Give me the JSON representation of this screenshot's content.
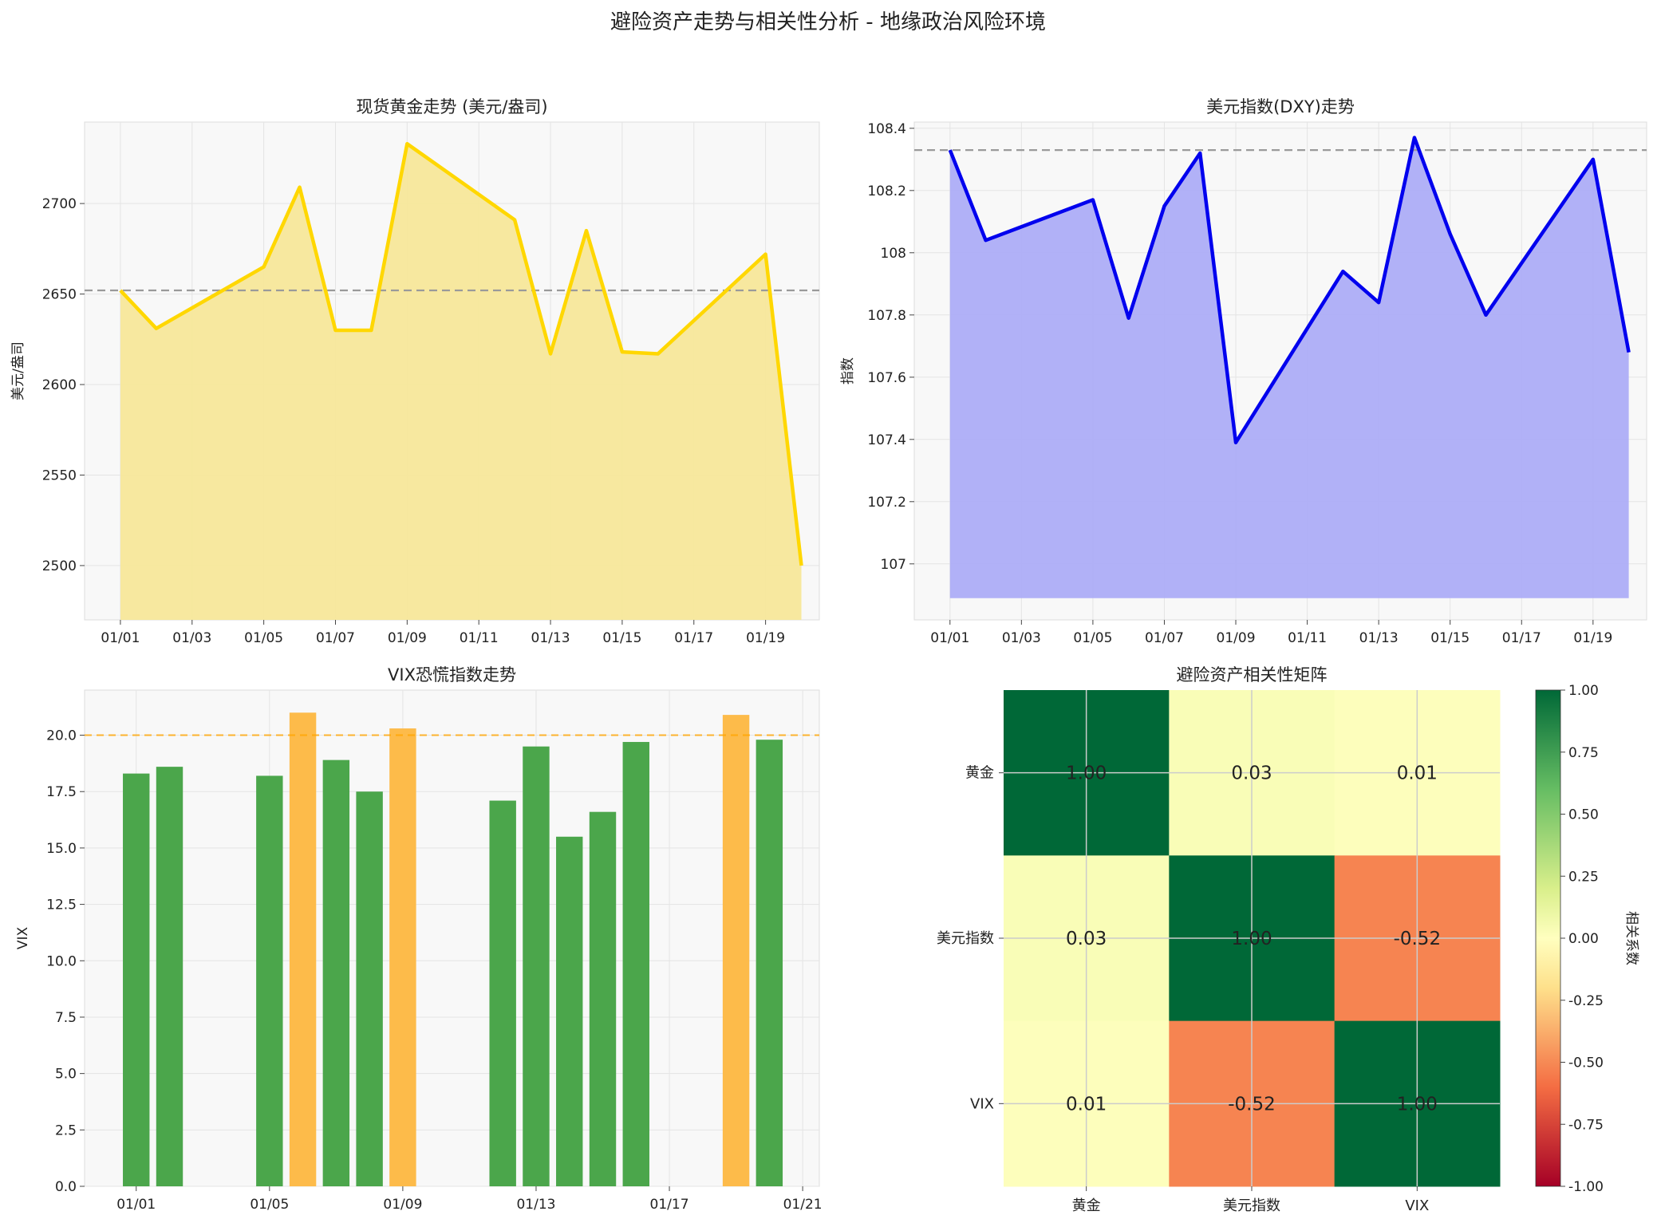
{
  "figure": {
    "title": "避险资产走势与相关性分析 - 地缘政治风险环境"
  },
  "chart_data": [
    {
      "type": "area",
      "title": "现货黄金走势 (美元/盎司)",
      "ylabel": "美元/盎司",
      "x": [
        "01/01",
        "01/02",
        "01/05",
        "01/06",
        "01/07",
        "01/08",
        "01/09",
        "01/12",
        "01/13",
        "01/14",
        "01/15",
        "01/16",
        "01/19",
        "01/20"
      ],
      "values": [
        2652,
        2631,
        2665,
        2709,
        2630,
        2630,
        2733,
        2691,
        2617,
        2685,
        2618,
        2617,
        2672,
        2500
      ],
      "mean_line": 2652,
      "fill_base": 2470,
      "ylim": [
        2470,
        2745
      ],
      "yticks": [
        2500,
        2550,
        2600,
        2650,
        2700
      ],
      "xticks": [
        "01/01",
        "01/03",
        "01/05",
        "01/07",
        "01/09",
        "01/11",
        "01/13",
        "01/15",
        "01/17",
        "01/19"
      ],
      "color": "#FFD700",
      "fill_color": "#F7E79A",
      "grid": true
    },
    {
      "type": "area",
      "title": "美元指数(DXY)走势",
      "ylabel": "指数",
      "x": [
        "01/01",
        "01/02",
        "01/05",
        "01/06",
        "01/07",
        "01/08",
        "01/09",
        "01/12",
        "01/13",
        "01/14",
        "01/15",
        "01/16",
        "01/19",
        "01/20"
      ],
      "values": [
        108.33,
        108.04,
        108.17,
        107.79,
        108.15,
        108.32,
        107.39,
        107.94,
        107.84,
        108.37,
        108.06,
        107.8,
        108.3,
        107.68
      ],
      "mean_line": 108.33,
      "fill_base": 106.89,
      "ylim": [
        106.82,
        108.42
      ],
      "yticks": [
        107.0,
        107.2,
        107.4,
        107.6,
        107.8,
        108.0,
        108.2,
        108.4
      ],
      "xticks": [
        "01/01",
        "01/03",
        "01/05",
        "01/07",
        "01/09",
        "01/11",
        "01/13",
        "01/15",
        "01/17",
        "01/19"
      ],
      "color": "#0000EE",
      "fill_color": "#ADADF7",
      "grid": true
    },
    {
      "type": "bar",
      "title": "VIX恐慌指数走势",
      "ylabel": "VIX",
      "x": [
        "01/01",
        "01/02",
        "01/05",
        "01/06",
        "01/07",
        "01/08",
        "01/09",
        "01/12",
        "01/13",
        "01/14",
        "01/15",
        "01/16",
        "01/19",
        "01/20"
      ],
      "values": [
        18.3,
        18.6,
        18.2,
        21.0,
        18.9,
        17.5,
        20.3,
        17.1,
        19.5,
        15.5,
        16.6,
        19.7,
        20.9,
        19.8
      ],
      "threshold_line": 20,
      "ylim": [
        0,
        22
      ],
      "yticks": [
        0.0,
        2.5,
        5.0,
        7.5,
        10.0,
        12.5,
        15.0,
        17.5,
        20.0
      ],
      "xticks": [
        "01/01",
        "01/05",
        "01/09",
        "01/13",
        "01/17",
        "01/21"
      ],
      "colors": {
        "below": "#4BA64B",
        "above": "#FDBB4A",
        "threshold": "#FFA500"
      },
      "grid": true
    },
    {
      "type": "heatmap",
      "title": "避险资产相关性矩阵",
      "labels": [
        "黄金",
        "美元指数",
        "VIX"
      ],
      "matrix": [
        [
          1.0,
          0.03,
          0.01
        ],
        [
          0.03,
          1.0,
          -0.52
        ],
        [
          0.01,
          -0.52,
          1.0
        ]
      ],
      "cell_text": [
        [
          "1.00",
          "0.03",
          "0.01"
        ],
        [
          "0.03",
          "1.00",
          "-0.52"
        ],
        [
          "0.01",
          "-0.52",
          "1.00"
        ]
      ],
      "colorbar_label": "相关系数",
      "colorbar_ticks": [
        "1.00",
        "0.75",
        "0.50",
        "0.25",
        "0.00",
        "-0.25",
        "-0.50",
        "-0.75",
        "-1.00"
      ],
      "vlim": [
        -1,
        1
      ],
      "colormap": "RdYlGn"
    }
  ]
}
